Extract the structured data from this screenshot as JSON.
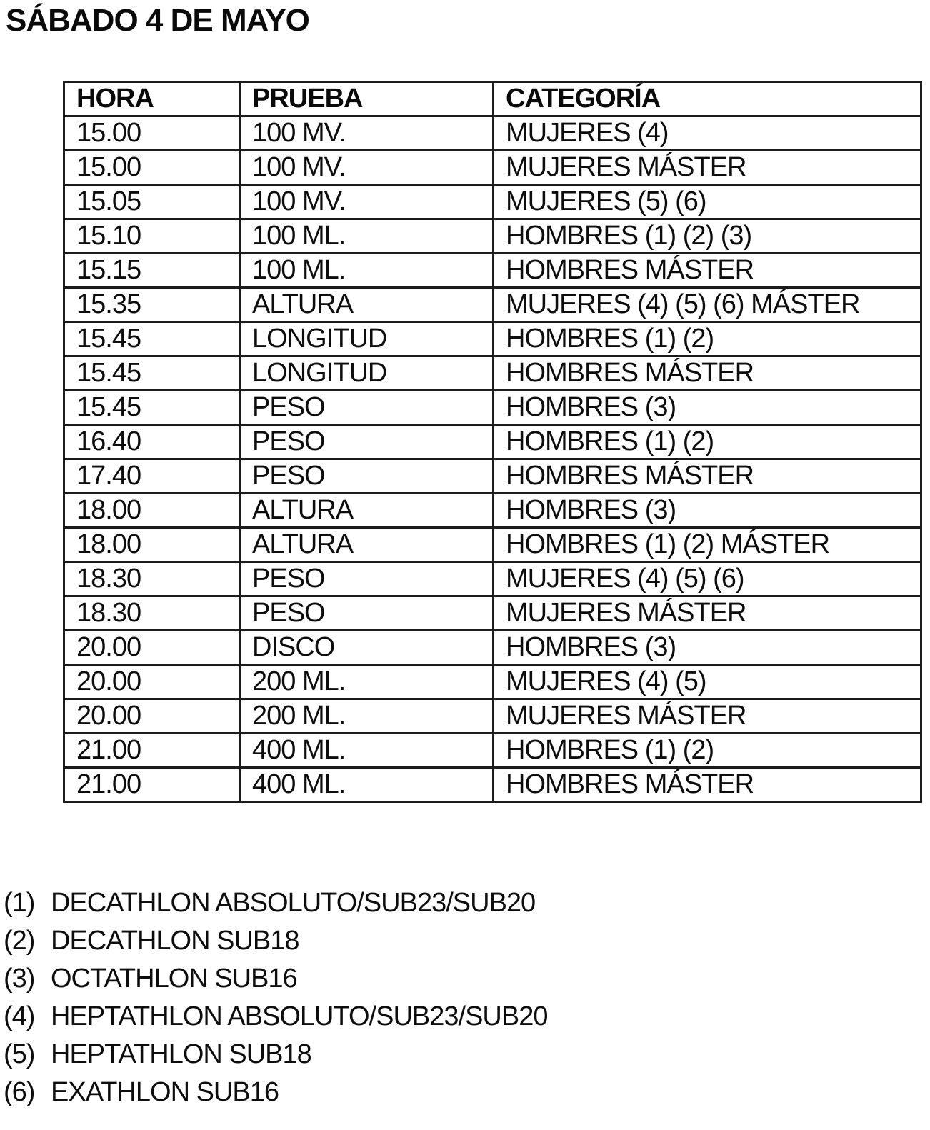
{
  "page": {
    "title": "SÁBADO 4 DE MAYO"
  },
  "table": {
    "headers": [
      "HORA",
      "PRUEBA",
      "CATEGORÍA"
    ],
    "rows": [
      [
        "15.00",
        "100 MV.",
        "MUJERES (4)"
      ],
      [
        "15.00",
        "100 MV.",
        "MUJERES MÁSTER"
      ],
      [
        "15.05",
        "100 MV.",
        "MUJERES (5) (6)"
      ],
      [
        "15.10",
        "100 ML.",
        "HOMBRES (1) (2) (3)"
      ],
      [
        "15.15",
        "100 ML.",
        "HOMBRES MÁSTER"
      ],
      [
        "15.35",
        "ALTURA",
        "MUJERES (4) (5) (6) MÁSTER"
      ],
      [
        "15.45",
        "LONGITUD",
        "HOMBRES (1) (2)"
      ],
      [
        "15.45",
        "LONGITUD",
        "HOMBRES MÁSTER"
      ],
      [
        "15.45",
        "PESO",
        "HOMBRES (3)"
      ],
      [
        "16.40",
        "PESO",
        "HOMBRES (1) (2)"
      ],
      [
        "17.40",
        "PESO",
        "HOMBRES MÁSTER"
      ],
      [
        "18.00",
        "ALTURA",
        "HOMBRES (3)"
      ],
      [
        "18.00",
        "ALTURA",
        "HOMBRES (1) (2) MÁSTER"
      ],
      [
        "18.30",
        "PESO",
        "MUJERES (4) (5) (6)"
      ],
      [
        "18.30",
        "PESO",
        "MUJERES MÁSTER"
      ],
      [
        "20.00",
        "DISCO",
        "HOMBRES (3)"
      ],
      [
        "20.00",
        "200 ML.",
        "MUJERES (4) (5)"
      ],
      [
        "20.00",
        "200 ML.",
        "MUJERES MÁSTER"
      ],
      [
        "21.00",
        "400 ML.",
        "HOMBRES (1) (2)"
      ],
      [
        "21.00",
        "400 ML.",
        "HOMBRES MÁSTER"
      ]
    ]
  },
  "footnotes": [
    {
      "num": "(1)",
      "text": "DECATHLON ABSOLUTO/SUB23/SUB20"
    },
    {
      "num": "(2)",
      "text": "DECATHLON SUB18"
    },
    {
      "num": "(3)",
      "text": "OCTATHLON SUB16"
    },
    {
      "num": "(4)",
      "text": "HEPTATHLON ABSOLUTO/SUB23/SUB20"
    },
    {
      "num": "(5)",
      "text": "HEPTATHLON SUB18"
    },
    {
      "num": "(6)",
      "text": "EXATHLON SUB16"
    }
  ],
  "colors": {
    "background": "#ffffff",
    "text": "#0d0d0d",
    "border": "#1c1c1c"
  }
}
